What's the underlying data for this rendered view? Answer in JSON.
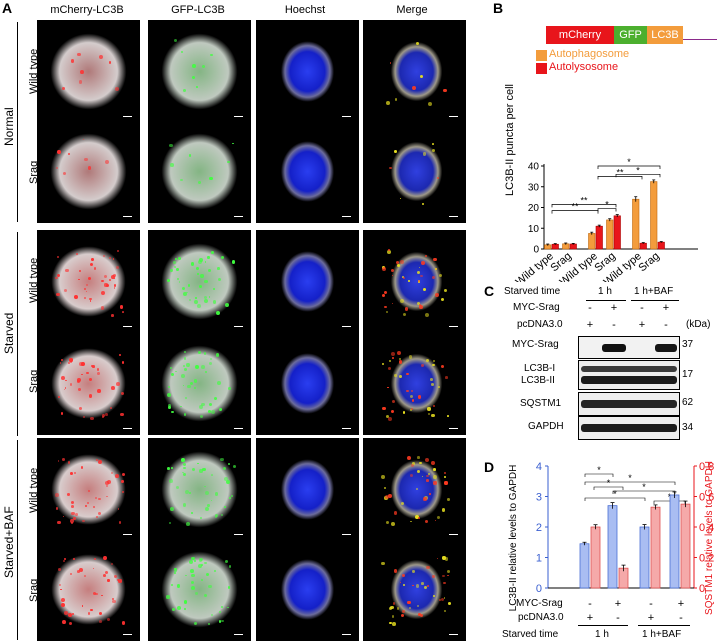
{
  "panel_labels": {
    "a": "A",
    "b": "B",
    "c": "C",
    "d": "D"
  },
  "panel_a": {
    "columns": [
      "mCherry-LC3B",
      "GFP-LC3B",
      "Hoechst",
      "Merge"
    ],
    "groups": [
      "Normal",
      "Starved",
      "Starved+BAF"
    ],
    "rows": [
      "Wild type",
      "Srag",
      "Wild type",
      "Srag",
      "Wild type",
      "Srag"
    ]
  },
  "panel_b": {
    "construct": [
      "mCherry",
      "GFP",
      "LC3B"
    ],
    "legend": [
      "Autophagosome",
      "Autolysosome"
    ],
    "colors": {
      "autophagosome": "#f39c3c",
      "autolysosome": "#e8151b",
      "mcherry": "#e8151b",
      "gfp": "#4caf2e",
      "lc3b": "#f39c3c",
      "line": "#8a2a8a"
    },
    "groups": [
      "Normal",
      "Starved",
      "Starved\n+BAF"
    ],
    "group_line1": [
      "Normal",
      "Starved",
      "Starved"
    ],
    "group_line2": [
      "",
      "",
      "+BAF"
    ],
    "sig": [
      "**",
      "**",
      "*",
      "**",
      "*",
      "*"
    ]
  },
  "chart_data": [
    {
      "type": "bar",
      "ylabel": "LC3B-II puncta per cell",
      "ylim": [
        0,
        40
      ],
      "yticks": [
        0,
        10,
        20,
        30,
        40
      ],
      "categories": [
        "Wild type",
        "Srag",
        "Wild type",
        "Srag",
        "Wild type",
        "Srag"
      ],
      "series": [
        {
          "name": "Autophagosome",
          "values": [
            2,
            2.5,
            7.5,
            14,
            24,
            32.5
          ],
          "errors": [
            0.4,
            0.4,
            0.6,
            0.6,
            1.2,
            0.8
          ]
        },
        {
          "name": "Autolysosome",
          "values": [
            2.3,
            2.4,
            11,
            16,
            2.8,
            3.3
          ],
          "errors": [
            0.3,
            0.3,
            0.5,
            0.6,
            0.3,
            0.3
          ]
        }
      ]
    },
    {
      "type": "bar",
      "ylabel_left": "LC3B-II relative levels to GAPDH",
      "ylabel_right": "SQSTM1 relative levels to GAPDH",
      "ylim_left": [
        0,
        4
      ],
      "yticks_left": [
        0,
        1,
        2,
        3,
        4
      ],
      "ylim_right": [
        0,
        0.8
      ],
      "yticks_right": [
        "0",
        "0.2",
        "0.4",
        "0.6",
        "0.8"
      ],
      "series": [
        {
          "name": "LC3B-II",
          "axis": "left",
          "values": [
            1.45,
            2.7,
            2.0,
            3.05
          ],
          "errors": [
            0.05,
            0.1,
            0.08,
            0.1
          ]
        },
        {
          "name": "SQSTM1",
          "axis": "right",
          "values": [
            0.4,
            0.13,
            0.53,
            0.55
          ],
          "errors": [
            0.015,
            0.02,
            0.015,
            0.02
          ]
        }
      ],
      "colors": {
        "lc3b": "#a9bdf2",
        "lc3b_edge": "#4a6fd4",
        "sqstm1": "#f5a9a9",
        "sqstm1_edge": "#e05050"
      },
      "rows": {
        "myc_srag": {
          "label": "MYC-Srag",
          "signs": [
            "-",
            "+",
            "-",
            "+"
          ]
        },
        "pcdna": {
          "label": "pcDNA3.0",
          "signs": [
            "+",
            "-",
            "+",
            "-"
          ]
        },
        "starved": {
          "label": "Starved time",
          "groups": [
            "1 h",
            "1 h+BAF"
          ]
        }
      },
      "sig": [
        "*",
        "*",
        "*",
        "*",
        "*",
        "*"
      ]
    }
  ],
  "panel_c": {
    "starved_label": "Starved time",
    "time_groups": [
      "1 h",
      "1 h+BAF"
    ],
    "myc_label": "MYC-Srag",
    "myc_signs": [
      "-",
      "+",
      "-",
      "+"
    ],
    "pc_label": "pcDNA3.0",
    "pc_signs": [
      "+",
      "-",
      "+",
      "-"
    ],
    "kda": "(kDa)",
    "blots": [
      {
        "label": "MYC-Srag",
        "mw": "37"
      },
      {
        "label": "LC3B-I",
        "label2": "LC3B-II",
        "mw": "17"
      },
      {
        "label": "SQSTM1",
        "mw": "62"
      },
      {
        "label": "GAPDH",
        "mw": "34"
      }
    ]
  }
}
